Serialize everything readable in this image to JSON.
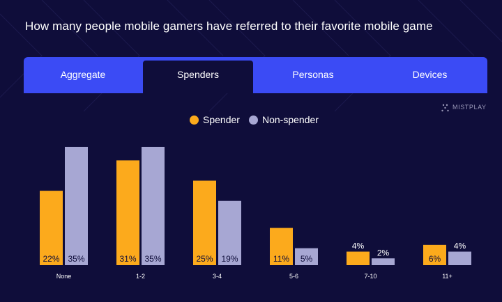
{
  "title": "How many people mobile gamers have referred to their favorite mobile game",
  "tabs": [
    {
      "label": "Aggregate",
      "active": false
    },
    {
      "label": "Spenders",
      "active": true
    },
    {
      "label": "Personas",
      "active": false
    },
    {
      "label": "Devices",
      "active": false
    }
  ],
  "brand": {
    "name": "MISTPLAY",
    "icon": "mistplay-logo-icon"
  },
  "colors": {
    "background": "#0f0d3a",
    "tab_bar": "#3b4bf5",
    "spender": "#fcaa1c",
    "non_spender": "#a7a7d3"
  },
  "chart_data": {
    "type": "bar",
    "categories": [
      "None",
      "1-2",
      "3-4",
      "5-6",
      "7-10",
      "11+"
    ],
    "series": [
      {
        "name": "Spender",
        "values": [
          22,
          31,
          25,
          11,
          4,
          6
        ]
      },
      {
        "name": "Non-spender",
        "values": [
          35,
          35,
          19,
          5,
          2,
          4
        ]
      }
    ],
    "value_suffix": "%",
    "ylim": [
      0,
      35
    ],
    "grid": false,
    "legend_position": "top-center",
    "xlabel": "",
    "ylabel": ""
  }
}
